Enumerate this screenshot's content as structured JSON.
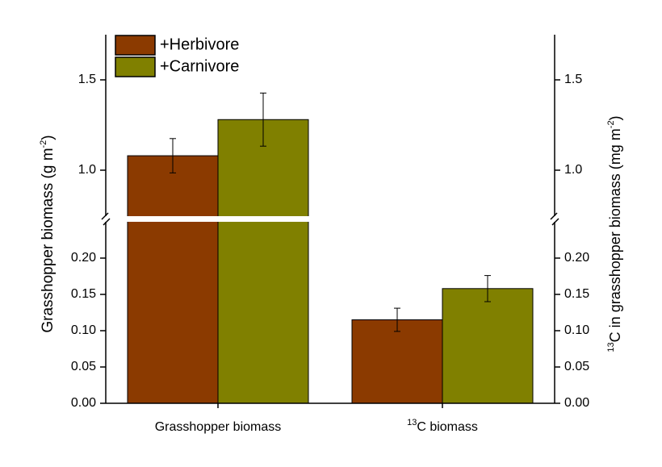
{
  "chart_data": {
    "type": "bar",
    "categories": [
      [
        "Grasshopper biomass"
      ],
      [
        "13",
        "C biomass"
      ]
    ],
    "ylabel": [
      "Grasshopper biomass (g m",
      "-2",
      ")"
    ],
    "y2label": [
      "13",
      "C in grasshopper biomass (mg m",
      "-2",
      ")"
    ],
    "ylim_lower": [
      0,
      0.25
    ],
    "yticks_lower": [
      {
        "value": 0,
        "label": "0.00"
      },
      {
        "value": 0.05,
        "label": "0.05"
      },
      {
        "value": 0.1,
        "label": "0.10"
      },
      {
        "value": 0.15,
        "label": "0.15"
      },
      {
        "value": 0.2,
        "label": "0.20"
      }
    ],
    "ylim_upper": [
      0.75,
      1.75
    ],
    "yticks_upper": [
      {
        "value": 1,
        "label": "1.0"
      },
      1.5
    ],
    "y2ticks_lower": [
      {
        "value": 0,
        "label": "0.00"
      },
      {
        "value": 0.05,
        "label": "0.05"
      },
      {
        "value": 0.1,
        "label": "0.10"
      },
      {
        "value": 0.15,
        "label": "0.15"
      },
      {
        "value": 0.2,
        "label": "0.20"
      }
    ],
    "y2ticks_upper": [
      {
        "value": 1,
        "label": "1.0"
      },
      1.5
    ],
    "legend": "upper left",
    "series": [
      {
        "name": "+Herbivore",
        "color": "#8b3a00",
        "values": [
          1.08,
          0.115
        ],
        "errors": [
          0.095,
          0.016
        ]
      },
      {
        "name": "+Carnivore",
        "color": "#808000",
        "values": [
          1.28,
          0.158
        ],
        "errors": [
          0.147,
          0.018
        ]
      }
    ]
  }
}
